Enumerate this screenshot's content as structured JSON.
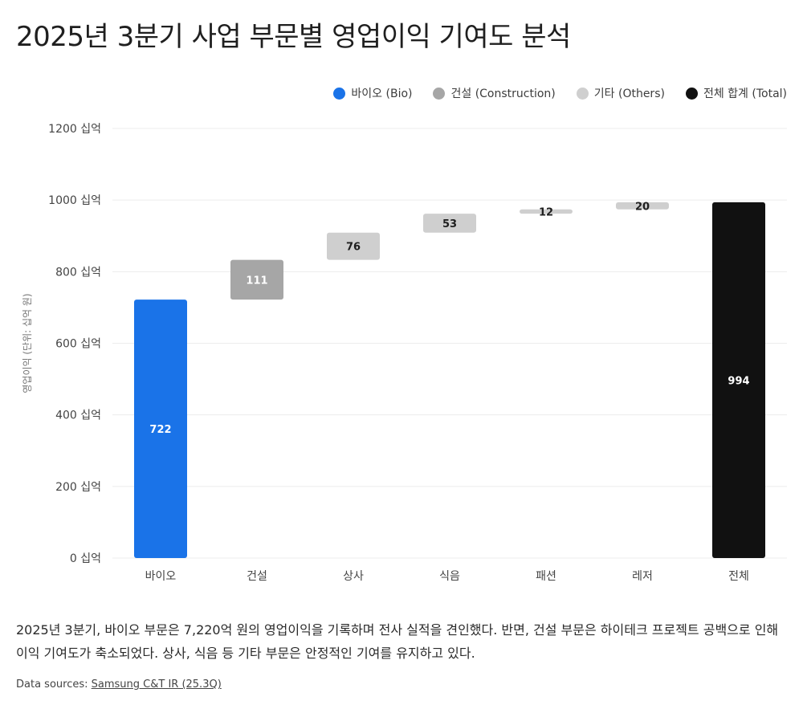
{
  "page": {
    "title": "2025년 3분기 사업 부문별 영업이익 기여도 분석",
    "description": "2025년 3분기, 바이오 부문은 7,220억 원의 영업이익을 기록하며 전사 실적을 견인했다. 반면, 건설 부문은 하이테크 프로젝트 공백으로 인해 이익 기여도가 축소되었다. 상사, 식음 등 기타 부문은 안정적인 기여를 유지하고 있다.",
    "sources_prefix": "Data sources: ",
    "sources_link": "Samsung C&T IR (25.3Q)"
  },
  "legend": [
    {
      "label": "바이오 (Bio)",
      "color": "#1a73e8"
    },
    {
      "label": "건설 (Construction)",
      "color": "#a6a6a6"
    },
    {
      "label": "기타 (Others)",
      "color": "#cfcfcf"
    },
    {
      "label": "전체 합계 (Total)",
      "color": "#111111"
    }
  ],
  "chart_data": {
    "type": "bar",
    "subtype": "waterfall",
    "title": "2025년 3분기 사업 부문별 영업이익 기여도 분석",
    "ylabel": "영업이익 (단위: 십억 원)",
    "ylim": [
      0,
      1200
    ],
    "yticks": [
      0,
      200,
      400,
      600,
      800,
      1000,
      1200
    ],
    "ytick_suffix": " 십억",
    "grid": true,
    "legend_position": "top-right",
    "categories": [
      "바이오",
      "건설",
      "상사",
      "식음",
      "패션",
      "레저",
      "전체"
    ],
    "values": [
      722,
      111,
      76,
      53,
      12,
      20,
      994
    ],
    "group": [
      "Bio",
      "Construction",
      "Others",
      "Others",
      "Others",
      "Others",
      "Total"
    ],
    "colors": [
      "#1a73e8",
      "#a6a6a6",
      "#cfcfcf",
      "#cfcfcf",
      "#cfcfcf",
      "#cfcfcf",
      "#111111"
    ],
    "label_colors": [
      "#ffffff",
      "#ffffff",
      "#1f1f1f",
      "#1f1f1f",
      "#1f1f1f",
      "#1f1f1f",
      "#ffffff"
    ]
  }
}
